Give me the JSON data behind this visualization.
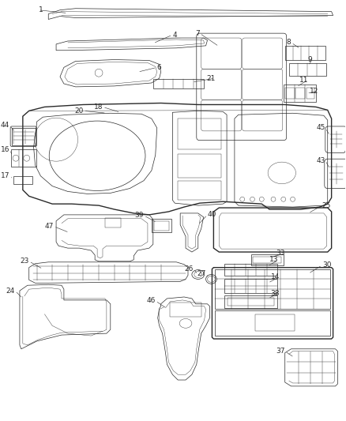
{
  "bg_color": "#ffffff",
  "line_color": "#2a2a2a",
  "fig_width": 4.38,
  "fig_height": 5.33,
  "dpi": 100,
  "label_fontsize": 6.5,
  "lw_main": 1.0,
  "lw_thin": 0.5,
  "lw_hair": 0.3
}
